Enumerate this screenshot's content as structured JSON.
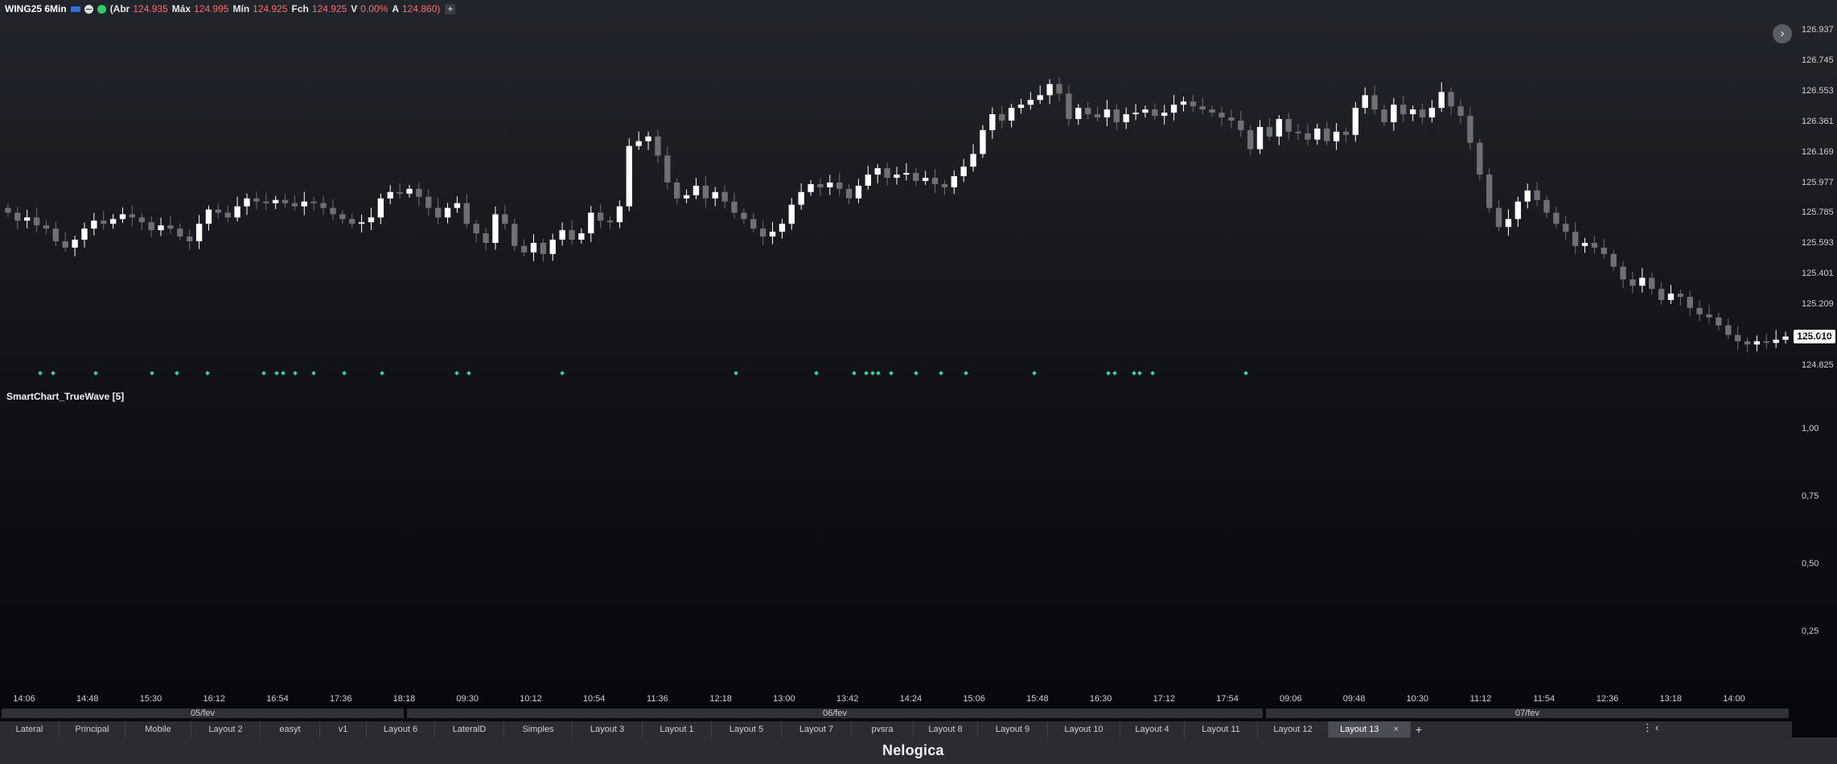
{
  "header": {
    "symbol": "WING25 6Min",
    "open_label": "(Abr",
    "open": "124.935",
    "high_label": "Máx",
    "high": "124.995",
    "low_label": "Mín",
    "low": "124.925",
    "close_label": "Fch",
    "close": "124.925",
    "var_label": "V",
    "var": "0.00%",
    "last_label": "A",
    "last": "124.860)",
    "add_label": "+"
  },
  "collapse_label": "›",
  "last_price_tag": "125.010",
  "indicator": {
    "name": "SmartChart_TrueWave [5]"
  },
  "chart_data": {
    "type": "candlestick",
    "price_ticks": [
      "126.937",
      "126.745",
      "126.553",
      "126.361",
      "126.169",
      "125.977",
      "125.785",
      "125.593",
      "125.401",
      "125.209",
      "125.010",
      "124.825"
    ],
    "indicator_ticks": [
      "1,00",
      "0,75",
      "0,50",
      "0,25"
    ],
    "time_labels": [
      "14:06",
      "14:48",
      "15:30",
      "16:12",
      "16:54",
      "17:36",
      "18:18",
      "09:30",
      "10:12",
      "10:54",
      "11:36",
      "12:18",
      "13:00",
      "13:42",
      "14:24",
      "15:06",
      "15:48",
      "16:30",
      "17:12",
      "17:54",
      "09:06",
      "09:48",
      "10:30",
      "11:12",
      "11:54",
      "12:36",
      "13:18",
      "14:00"
    ],
    "date_labels": [
      "05/fev",
      "06/fev",
      "07/fev"
    ],
    "ylim": [
      124.825,
      126.937
    ],
    "closes": [
      125.79,
      125.74,
      125.76,
      125.71,
      125.69,
      125.61,
      125.57,
      125.62,
      125.69,
      125.74,
      125.72,
      125.75,
      125.78,
      125.76,
      125.73,
      125.68,
      125.71,
      125.69,
      125.64,
      125.61,
      125.72,
      125.81,
      125.79,
      125.76,
      125.83,
      125.88,
      125.86,
      125.85,
      125.87,
      125.85,
      125.83,
      125.86,
      125.85,
      125.82,
      125.78,
      125.75,
      125.72,
      125.73,
      125.76,
      125.88,
      125.92,
      125.91,
      125.94,
      125.89,
      125.82,
      125.76,
      125.82,
      125.85,
      125.72,
      125.66,
      125.6,
      125.78,
      125.72,
      125.58,
      125.54,
      125.6,
      125.53,
      125.62,
      125.68,
      125.62,
      125.66,
      125.79,
      125.74,
      125.73,
      125.83,
      126.21,
      126.24,
      126.27,
      126.15,
      125.98,
      125.88,
      125.9,
      125.96,
      125.88,
      125.92,
      125.86,
      125.79,
      125.75,
      125.69,
      125.64,
      125.67,
      125.72,
      125.84,
      125.92,
      125.97,
      125.95,
      125.98,
      125.94,
      125.88,
      125.96,
      126.03,
      126.07,
      126.01,
      126.03,
      126.04,
      125.99,
      126.01,
      125.97,
      125.95,
      126.02,
      126.08,
      126.16,
      126.31,
      126.41,
      126.37,
      126.45,
      126.47,
      126.5,
      126.53,
      126.6,
      126.54,
      126.38,
      126.45,
      126.41,
      126.39,
      126.44,
      126.36,
      126.41,
      126.42,
      126.44,
      126.4,
      126.42,
      126.47,
      126.49,
      126.46,
      126.44,
      126.42,
      126.39,
      126.37,
      126.31,
      126.19,
      126.33,
      126.27,
      126.38,
      126.3,
      126.29,
      126.25,
      126.32,
      126.24,
      126.3,
      126.28,
      126.45,
      126.53,
      126.44,
      126.36,
      126.47,
      126.41,
      126.44,
      126.39,
      126.45,
      126.55,
      126.46,
      126.4,
      126.23,
      126.03,
      125.82,
      125.7,
      125.75,
      125.86,
      125.93,
      125.87,
      125.79,
      125.72,
      125.67,
      125.58,
      125.6,
      125.57,
      125.53,
      125.45,
      125.37,
      125.33,
      125.38,
      125.31,
      125.24,
      125.28,
      125.26,
      125.19,
      125.15,
      125.13,
      125.08,
      125.02,
      124.98,
      124.96,
      124.98,
      124.97,
      124.99,
      125.01
    ],
    "signal_marker_times": [
      50,
      66,
      119,
      189,
      220,
      258,
      328,
      344,
      352,
      367,
      390,
      428,
      475,
      568,
      583,
      699,
      915,
      1015,
      1062,
      1077,
      1085,
      1092,
      1108,
      1139,
      1170,
      1201,
      1286,
      1378,
      1386,
      1410,
      1417,
      1433,
      1549
    ]
  },
  "tabs": [
    {
      "label": "Lateral"
    },
    {
      "label": "Principal"
    },
    {
      "label": "Mobile"
    },
    {
      "label": "Layout 2"
    },
    {
      "label": "easyt"
    },
    {
      "label": "v1"
    },
    {
      "label": "Layout 6"
    },
    {
      "label": "LateralD"
    },
    {
      "label": "Simples"
    },
    {
      "label": "Layout 3"
    },
    {
      "label": "Layout 1"
    },
    {
      "label": "Layout 5"
    },
    {
      "label": "Layout 7"
    },
    {
      "label": "pvsra"
    },
    {
      "label": "Layout 8"
    },
    {
      "label": "Layout 9"
    },
    {
      "label": "Layout 10"
    },
    {
      "label": "Layout 4"
    },
    {
      "label": "Layout 11"
    },
    {
      "label": "Layout 12"
    },
    {
      "label": "Layout 13",
      "active": true
    }
  ],
  "tab_controls": {
    "close": "×",
    "add": "+",
    "more": "⋮",
    "left": "‹"
  },
  "footer": {
    "logo": "Nelogica"
  },
  "colors": {
    "bull_candle": "#ffffff",
    "bear_candle": "#6f7074",
    "signal_marker": "#3ecf9a",
    "price_tag_bg": "#ffffff"
  }
}
